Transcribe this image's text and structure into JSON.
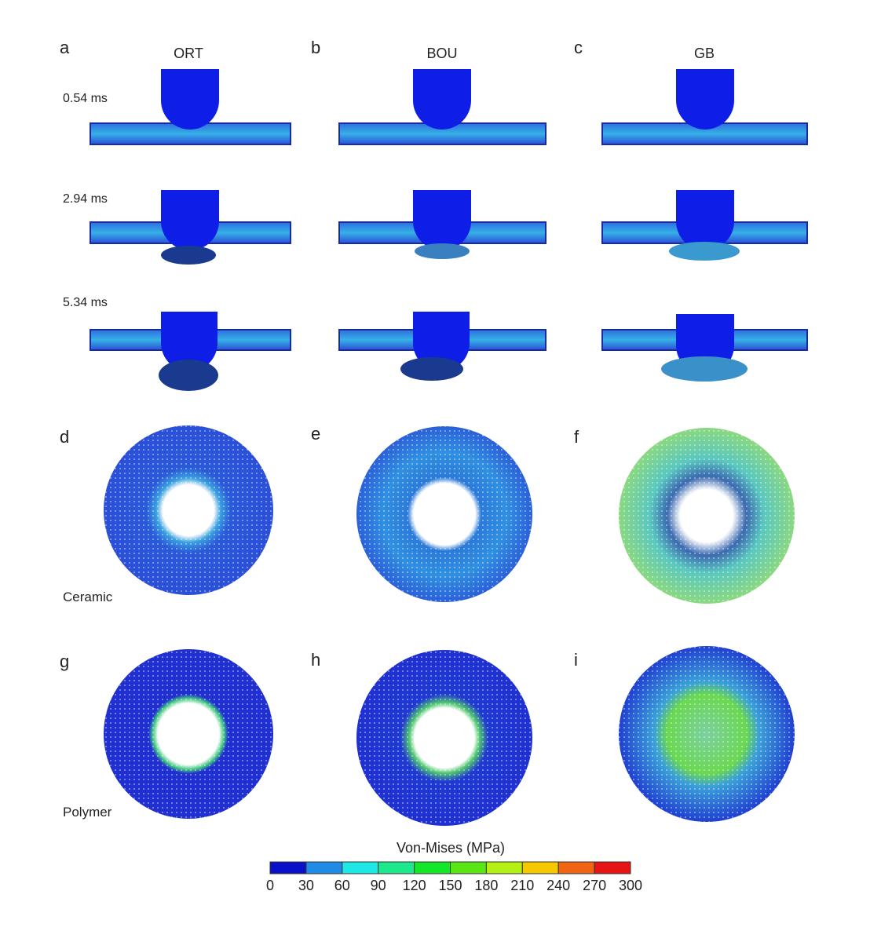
{
  "panels": {
    "a": "a",
    "b": "b",
    "c": "c",
    "d": "d",
    "e": "e",
    "f": "f",
    "g": "g",
    "h": "h",
    "i": "i"
  },
  "columns": [
    "ORT",
    "BOU",
    "GB"
  ],
  "times": [
    "0.54 ms",
    "2.94 ms",
    "5.34 ms"
  ],
  "materials": [
    "Ceramic",
    "Polymer"
  ],
  "colorbar": {
    "title": "Von-Mises (MPa)",
    "ticks": [
      "0",
      "30",
      "60",
      "90",
      "120",
      "150",
      "180",
      "210",
      "240",
      "270",
      "300"
    ],
    "colors": [
      "#0a0fc8",
      "#1e8ce6",
      "#1ee8e6",
      "#1ee88c",
      "#14e628",
      "#5ae614",
      "#b4f014",
      "#f5c800",
      "#f06414",
      "#e61414"
    ]
  }
}
